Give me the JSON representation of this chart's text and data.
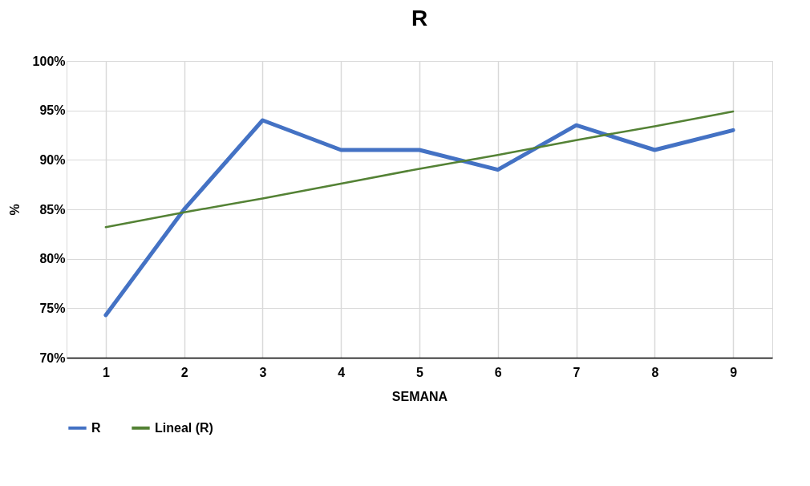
{
  "chart_data": {
    "type": "line",
    "title": "R",
    "xlabel": "SEMANA",
    "ylabel": "%",
    "categories": [
      "1",
      "2",
      "3",
      "4",
      "5",
      "6",
      "7",
      "8",
      "9"
    ],
    "series": [
      {
        "name": "R",
        "color": "#4472c4",
        "values": [
          74.3,
          85,
          94,
          91,
          91,
          89,
          93.5,
          91,
          93
        ]
      },
      {
        "name": "Lineal (R)",
        "color": "#548235",
        "values": [
          83.2,
          84.7,
          86.1,
          87.6,
          89.1,
          90.5,
          92.0,
          93.4,
          94.9
        ]
      }
    ],
    "ylim": [
      70,
      100
    ],
    "yticks": [
      {
        "value": 70,
        "label": "70%"
      },
      {
        "value": 75,
        "label": "75%"
      },
      {
        "value": 80,
        "label": "80%"
      },
      {
        "value": 85,
        "label": "85%"
      },
      {
        "value": 90,
        "label": "90%"
      },
      {
        "value": 95,
        "label": "95%"
      },
      {
        "value": 100,
        "label": "100%"
      }
    ],
    "grid": true,
    "legend": "bottom",
    "marker": "none",
    "line_style": "solid"
  }
}
